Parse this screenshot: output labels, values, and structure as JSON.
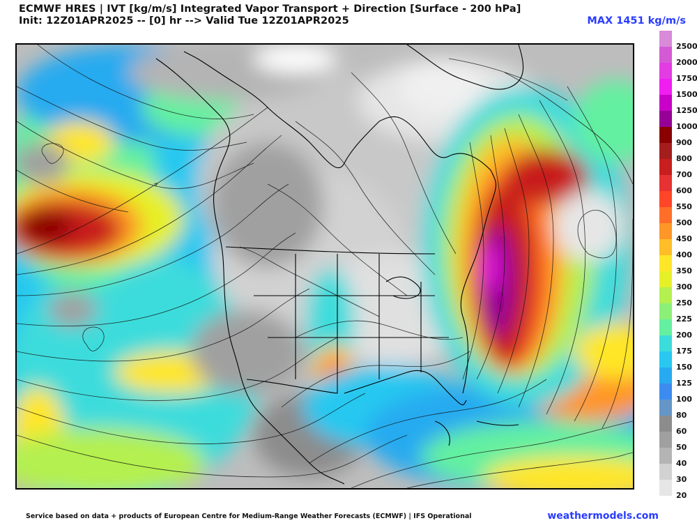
{
  "header": {
    "title_line1": "ECMWF HRES | IVT [kg/m/s] Integrated Vapor Transport + Direction [Surface - 200 hPa]",
    "title_line2": "Init: 12Z01APR2025 -- [0] hr --> Valid Tue 12Z01APR2025",
    "max_label": "MAX 1451 kg/m/s"
  },
  "legend": {
    "items": [
      {
        "label": "2500",
        "color": "#d98ad9"
      },
      {
        "label": "2000",
        "color": "#d45ad4"
      },
      {
        "label": "1750",
        "color": "#e23ce2"
      },
      {
        "label": "1500",
        "color": "#f01ef0"
      },
      {
        "label": "1250",
        "color": "#c800c8"
      },
      {
        "label": "1000",
        "color": "#960096"
      },
      {
        "label": "900",
        "color": "#8b0000"
      },
      {
        "label": "800",
        "color": "#a51e1e"
      },
      {
        "label": "700",
        "color": "#c81e1e"
      },
      {
        "label": "600",
        "color": "#e63232"
      },
      {
        "label": "550",
        "color": "#ff4628"
      },
      {
        "label": "500",
        "color": "#ff6e28"
      },
      {
        "label": "450",
        "color": "#ff9628"
      },
      {
        "label": "400",
        "color": "#ffbe28"
      },
      {
        "label": "350",
        "color": "#ffe628"
      },
      {
        "label": "300",
        "color": "#e6f028"
      },
      {
        "label": "250",
        "color": "#b4f050"
      },
      {
        "label": "225",
        "color": "#8cf078"
      },
      {
        "label": "200",
        "color": "#64f0a0"
      },
      {
        "label": "175",
        "color": "#3cdcdc"
      },
      {
        "label": "150",
        "color": "#28c8f0"
      },
      {
        "label": "125",
        "color": "#28aaf0"
      },
      {
        "label": "100",
        "color": "#3c8cf0"
      },
      {
        "label": "80",
        "color": "#6496c8"
      },
      {
        "label": "60",
        "color": "#8c8c8c"
      },
      {
        "label": "50",
        "color": "#a0a0a0"
      },
      {
        "label": "40",
        "color": "#b4b4b4"
      },
      {
        "label": "30",
        "color": "#d2d2d2"
      },
      {
        "label": "20",
        "color": "#e6e6e6"
      }
    ]
  },
  "footer": {
    "note": "Service based on data + products of European Centre for Medium-Range Weather Forecasts (ECMWF) | IFS Operational",
    "site": "weathermodels.com"
  },
  "colors": {
    "accent_blue": "#2a3cff"
  }
}
